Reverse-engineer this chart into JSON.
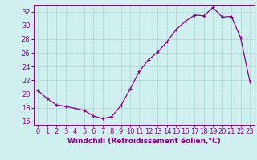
{
  "x": [
    0,
    1,
    2,
    3,
    4,
    5,
    6,
    7,
    8,
    9,
    10,
    11,
    12,
    13,
    14,
    15,
    16,
    17,
    18,
    19,
    20,
    21,
    22,
    23
  ],
  "y": [
    20.5,
    19.3,
    18.4,
    18.2,
    17.9,
    17.6,
    16.8,
    16.4,
    16.7,
    18.3,
    20.7,
    23.3,
    25.0,
    26.1,
    27.6,
    29.4,
    30.6,
    31.5,
    31.4,
    32.6,
    31.2,
    31.3,
    28.2,
    21.8
  ],
  "ylim": [
    15.5,
    33.0
  ],
  "yticks": [
    16,
    18,
    20,
    22,
    24,
    26,
    28,
    30,
    32
  ],
  "xlim": [
    -0.5,
    23.5
  ],
  "line_color": "#880088",
  "marker_color": "#880088",
  "bg_color": "#d0f0f0",
  "grid_color": "#b0d8d8",
  "xlabel": "Windchill (Refroidissement éolien,°C)",
  "xlabel_fontsize": 6.5,
  "tick_fontsize": 6.0
}
